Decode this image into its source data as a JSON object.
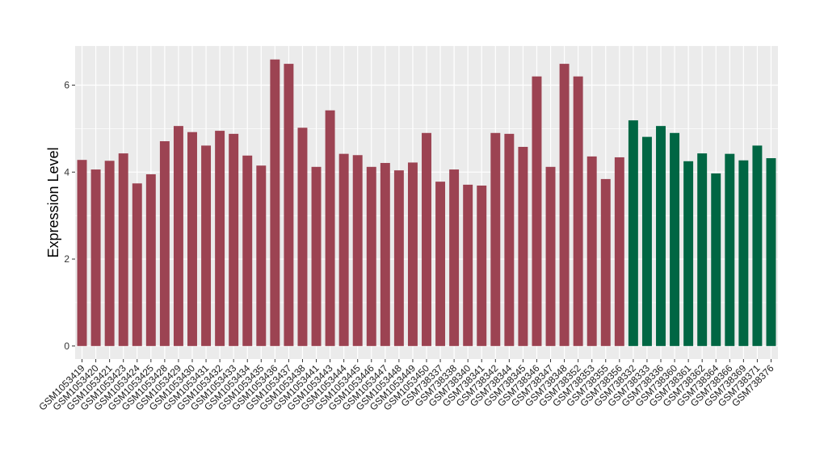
{
  "chart_data": {
    "type": "bar",
    "xlabel": "",
    "ylabel": "Expression Level",
    "ylim": [
      -0.3,
      6.9
    ],
    "yticks": [
      0,
      2,
      4,
      6
    ],
    "grid": true,
    "legend": "none",
    "colors": {
      "panel_background": "#ebebeb",
      "grid": "#ffffff",
      "group_a": "#9c4352",
      "group_b": "#006643"
    },
    "categories": [
      "GSM1053419",
      "GSM1053420",
      "GSM1053421",
      "GSM1053423",
      "GSM1053424",
      "GSM1053425",
      "GSM1053428",
      "GSM1053429",
      "GSM1053430",
      "GSM1053431",
      "GSM1053432",
      "GSM1053433",
      "GSM1053434",
      "GSM1053435",
      "GSM1053436",
      "GSM1053437",
      "GSM1053438",
      "GSM1053441",
      "GSM1053443",
      "GSM1053444",
      "GSM1053445",
      "GSM1053446",
      "GSM1053447",
      "GSM1053448",
      "GSM1053449",
      "GSM1053450",
      "GSM738337",
      "GSM738338",
      "GSM738340",
      "GSM738341",
      "GSM738342",
      "GSM738344",
      "GSM738345",
      "GSM738346",
      "GSM738347",
      "GSM738348",
      "GSM738352",
      "GSM738353",
      "GSM738355",
      "GSM738356",
      "GSM738332",
      "GSM738333",
      "GSM738336",
      "GSM738360",
      "GSM738361",
      "GSM738362",
      "GSM738364",
      "GSM738366",
      "GSM738369",
      "GSM738371",
      "GSM738376"
    ],
    "values": [
      4.28,
      4.06,
      4.26,
      4.43,
      3.74,
      3.95,
      4.71,
      5.06,
      4.92,
      4.61,
      4.95,
      4.88,
      4.38,
      4.15,
      6.59,
      6.49,
      5.02,
      4.12,
      5.42,
      4.42,
      4.39,
      4.12,
      4.21,
      4.04,
      4.22,
      4.9,
      3.78,
      4.06,
      3.71,
      3.69,
      4.9,
      4.88,
      4.58,
      6.2,
      4.12,
      6.49,
      6.2,
      4.36,
      3.84,
      4.34,
      5.19,
      4.81,
      5.06,
      4.9,
      4.25,
      4.43,
      3.97,
      4.42,
      4.27,
      4.61,
      4.32
    ],
    "groups": [
      "a",
      "a",
      "a",
      "a",
      "a",
      "a",
      "a",
      "a",
      "a",
      "a",
      "a",
      "a",
      "a",
      "a",
      "a",
      "a",
      "a",
      "a",
      "a",
      "a",
      "a",
      "a",
      "a",
      "a",
      "a",
      "a",
      "a",
      "a",
      "a",
      "a",
      "a",
      "a",
      "a",
      "a",
      "a",
      "a",
      "a",
      "a",
      "a",
      "a",
      "b",
      "b",
      "b",
      "b",
      "b",
      "b",
      "b",
      "b",
      "b",
      "b",
      "b"
    ]
  }
}
